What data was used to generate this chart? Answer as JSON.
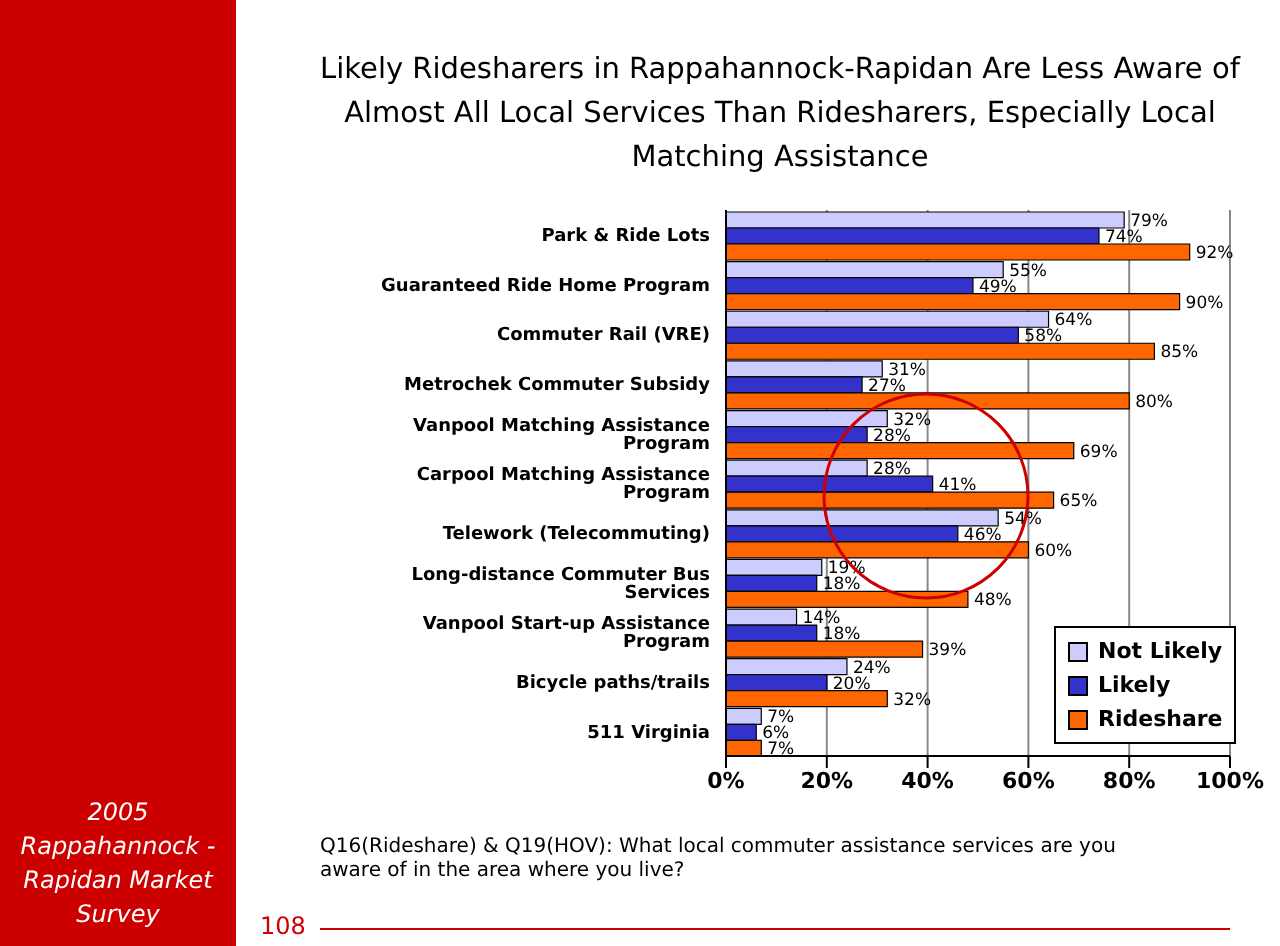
{
  "chart_data": {
    "type": "bar",
    "orientation": "horizontal",
    "title": "Likely Ridesharers in Rappahannock-Rapidan Are Less Aware of Almost All Local Services Than Ridesharers, Especially Local Matching Assistance",
    "categories": [
      "Park & Ride Lots",
      "Guaranteed Ride Home Program",
      "Commuter Rail (VRE)",
      "Metrochek Commuter Subsidy",
      "Vanpool Matching Assistance Program",
      "Carpool Matching Assistance Program",
      "Telework (Telecommuting)",
      "Long-distance Commuter Bus Services",
      "Vanpool Start-up Assistance Program",
      "Bicycle paths/trails",
      "511 Virginia"
    ],
    "series": [
      {
        "name": "Not Likely",
        "color": "#ccccff",
        "values": [
          79,
          55,
          64,
          31,
          32,
          28,
          54,
          19,
          14,
          24,
          7
        ],
        "value_labels": [
          "79%",
          "55%",
          "64%",
          "31%",
          "32%",
          "28%",
          "54%",
          "19%",
          "14%",
          "24%",
          "7%"
        ]
      },
      {
        "name": "Likely",
        "color": "#3333cc",
        "values": [
          74,
          49,
          58,
          27,
          28,
          41,
          46,
          18,
          18,
          20,
          6
        ],
        "value_labels": [
          "74%",
          "49%",
          "58%",
          "27%",
          "28%",
          "41%",
          "46%",
          "18%",
          "18%",
          "20%",
          "6%"
        ]
      },
      {
        "name": "Rideshare",
        "color": "#ff6600",
        "values": [
          92,
          90,
          85,
          80,
          69,
          65,
          60,
          48,
          39,
          32,
          7
        ],
        "value_labels": [
          "92%",
          "90%",
          "85%",
          "80%",
          "69%",
          "65%",
          "60%",
          "48%",
          "39%",
          "32%",
          "7%"
        ]
      }
    ],
    "xlim": [
      0,
      100
    ],
    "xticks": [
      {
        "value": 0,
        "label": "0%"
      },
      {
        "value": 20,
        "label": "20%"
      },
      {
        "value": 40,
        "label": "40%"
      },
      {
        "value": 60,
        "label": "60%"
      },
      {
        "value": 80,
        "label": "80%"
      },
      {
        "value": 100,
        "label": "100%"
      }
    ],
    "grid": "x",
    "legend": "bottom right",
    "annotations": [
      "Q16(Rideshare) & Q19(HOV): What local commuter assistance services are you aware of in the area where you live?",
      "108",
      "2005 Rappahannock - Rapidan Market Survey"
    ]
  }
}
